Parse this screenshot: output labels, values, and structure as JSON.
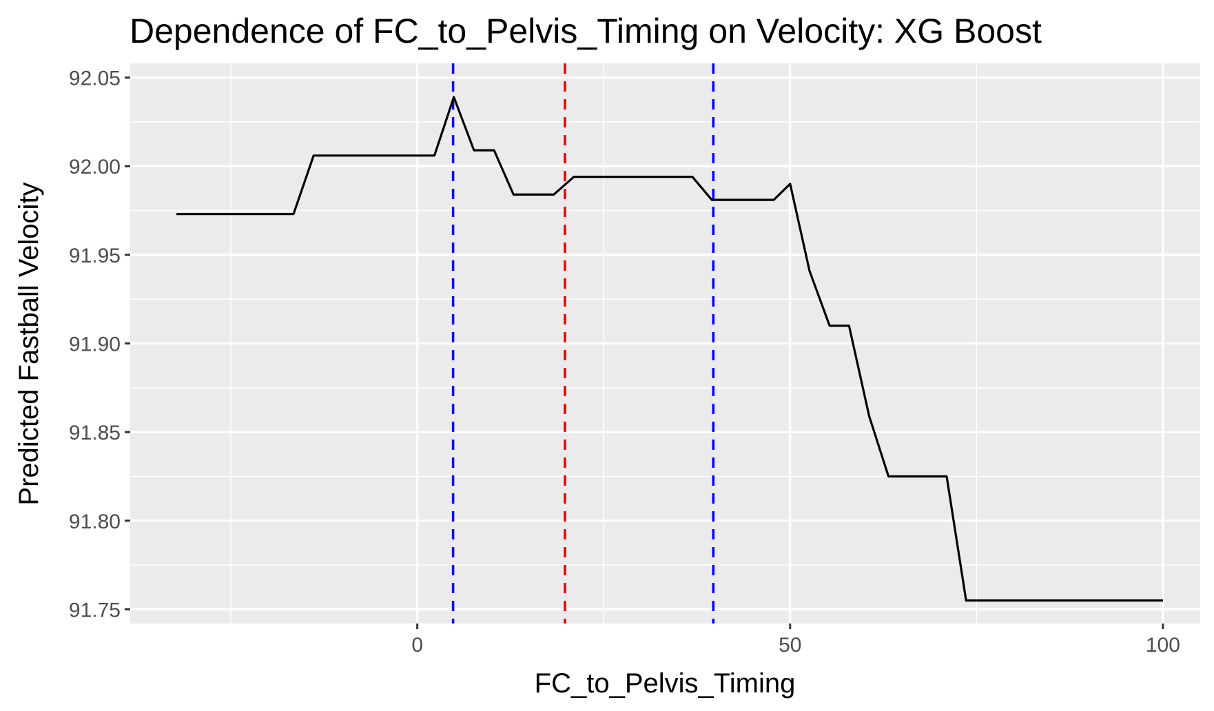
{
  "chart_data": {
    "type": "line",
    "title": "Dependence of FC_to_Pelvis_Timing on Velocity: XG Boost",
    "xlabel": "FC_to_Pelvis_Timing",
    "ylabel": "Predicted Fastball Velocity",
    "xlim": [
      -38.5,
      105
    ],
    "ylim": [
      91.742,
      92.058
    ],
    "x_ticks": [
      0,
      50,
      100
    ],
    "x_tick_labels": [
      "0",
      "50",
      "100"
    ],
    "y_ticks": [
      91.75,
      91.8,
      91.85,
      91.9,
      91.95,
      92.0,
      92.05
    ],
    "y_tick_labels": [
      "91.75",
      "91.80",
      "91.85",
      "91.90",
      "91.95",
      "92.00",
      "92.05"
    ],
    "grid": true,
    "colors": {
      "panel": "#ebebeb",
      "grid": "#ffffff",
      "line": "#000000",
      "blue_line": "#0000ff",
      "red_line": "#ee0000"
    },
    "series": [
      {
        "x": [
          -32.3,
          -16.6,
          -13.9,
          2.3,
          4.9,
          7.6,
          10.3,
          12.9,
          18.3,
          21.0,
          36.9,
          39.5,
          47.8,
          50.0,
          52.6,
          55.3,
          57.9,
          60.6,
          63.2,
          71.0,
          73.6,
          100.0
        ],
        "y": [
          91.973,
          91.973,
          92.006,
          92.006,
          92.039,
          92.009,
          92.009,
          91.984,
          91.984,
          91.994,
          91.994,
          91.981,
          91.981,
          91.99,
          91.941,
          91.91,
          91.91,
          91.859,
          91.825,
          91.825,
          91.755,
          91.755
        ]
      }
    ],
    "vlines": [
      {
        "x": 4.8,
        "color": "blue",
        "style": "dashed"
      },
      {
        "x": 19.8,
        "color": "red",
        "style": "dashed"
      },
      {
        "x": 39.7,
        "color": "blue",
        "style": "dashed"
      }
    ]
  }
}
